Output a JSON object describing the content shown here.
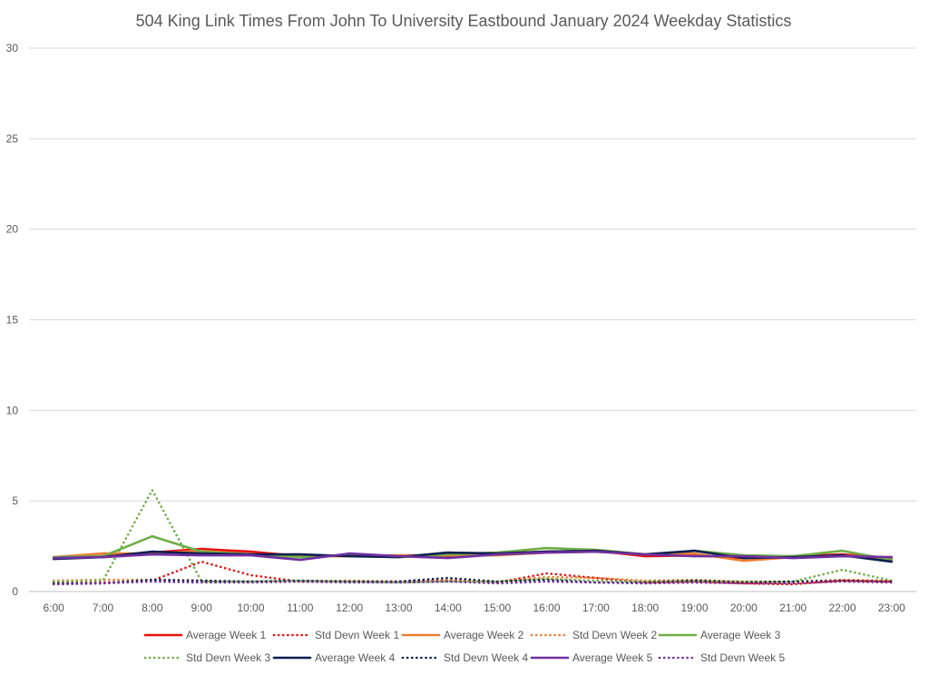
{
  "chart_data": {
    "type": "line",
    "title": "504 King Link Times From John To University Eastbound January 2024 Weekday Statistics",
    "xlabel": "",
    "ylabel": "",
    "ylim": [
      0,
      30
    ],
    "yticks": [
      0,
      5,
      10,
      15,
      20,
      25,
      30
    ],
    "grid": true,
    "legend_position": "bottom",
    "categories": [
      "6:00",
      "7:00",
      "8:00",
      "9:00",
      "10:00",
      "11:00",
      "12:00",
      "13:00",
      "14:00",
      "15:00",
      "16:00",
      "17:00",
      "18:00",
      "19:00",
      "20:00",
      "21:00",
      "22:00",
      "23:00"
    ],
    "series": [
      {
        "name": "Average Week 1",
        "style": "solid",
        "color": "#e81010",
        "values": [
          1.85,
          1.95,
          2.15,
          2.35,
          2.2,
          1.95,
          2.0,
          1.95,
          1.95,
          2.1,
          2.2,
          2.25,
          1.95,
          2.0,
          1.85,
          1.95,
          2.05,
          1.85
        ]
      },
      {
        "name": "Std Devn Week 1",
        "style": "dotted",
        "color": "#e81010",
        "values": [
          0.5,
          0.5,
          0.6,
          1.65,
          0.9,
          0.55,
          0.55,
          0.55,
          0.6,
          0.5,
          1.0,
          0.75,
          0.5,
          0.55,
          0.45,
          0.4,
          0.6,
          0.55
        ]
      },
      {
        "name": "Average Week 2",
        "style": "solid",
        "color": "#ed7d31",
        "values": [
          1.9,
          2.1,
          2.1,
          2.25,
          2.05,
          1.95,
          1.95,
          2.0,
          2.0,
          2.0,
          2.15,
          2.2,
          2.05,
          2.1,
          1.7,
          1.9,
          2.0,
          1.8
        ]
      },
      {
        "name": "Std Devn Week 2",
        "style": "dotted",
        "color": "#ed7d31",
        "values": [
          0.6,
          0.65,
          0.65,
          0.6,
          0.55,
          0.55,
          0.6,
          0.55,
          0.65,
          0.55,
          0.8,
          0.75,
          0.6,
          0.65,
          0.55,
          0.55,
          0.65,
          0.6
        ]
      },
      {
        "name": "Average Week 3",
        "style": "solid",
        "color": "#70ad47",
        "values": [
          1.9,
          1.95,
          3.05,
          2.2,
          2.05,
          1.9,
          2.0,
          1.9,
          2.05,
          2.15,
          2.4,
          2.3,
          2.05,
          2.25,
          2.0,
          1.95,
          2.25,
          1.75
        ]
      },
      {
        "name": "Std Devn Week 3",
        "style": "dotted",
        "color": "#70ad47",
        "values": [
          0.55,
          0.6,
          5.6,
          0.55,
          0.55,
          0.6,
          0.55,
          0.5,
          0.55,
          0.55,
          0.7,
          0.6,
          0.55,
          0.6,
          0.55,
          0.55,
          1.2,
          0.6
        ]
      },
      {
        "name": "Average Week 4",
        "style": "solid",
        "color": "#0e1f4f",
        "values": [
          1.8,
          1.9,
          2.2,
          2.1,
          2.05,
          2.05,
          1.95,
          1.9,
          2.15,
          2.1,
          2.2,
          2.25,
          2.05,
          2.25,
          1.85,
          1.9,
          2.0,
          1.65
        ]
      },
      {
        "name": "Std Devn Week 4",
        "style": "dotted",
        "color": "#0e1f4f",
        "values": [
          0.45,
          0.45,
          0.65,
          0.6,
          0.55,
          0.6,
          0.55,
          0.55,
          0.75,
          0.55,
          0.65,
          0.5,
          0.5,
          0.6,
          0.5,
          0.55,
          0.6,
          0.55
        ]
      },
      {
        "name": "Average Week 5",
        "style": "solid",
        "color": "#7030a0",
        "values": [
          1.85,
          1.9,
          2.05,
          2.0,
          2.0,
          1.75,
          2.1,
          1.95,
          1.85,
          2.05,
          2.15,
          2.2,
          2.05,
          1.95,
          1.95,
          1.85,
          1.95,
          1.9
        ]
      },
      {
        "name": "Std Devn Week 5",
        "style": "dotted",
        "color": "#7030a0",
        "values": [
          0.4,
          0.45,
          0.55,
          0.5,
          0.5,
          0.55,
          0.5,
          0.5,
          0.55,
          0.45,
          0.55,
          0.5,
          0.45,
          0.5,
          0.45,
          0.45,
          0.55,
          0.5
        ]
      }
    ]
  }
}
